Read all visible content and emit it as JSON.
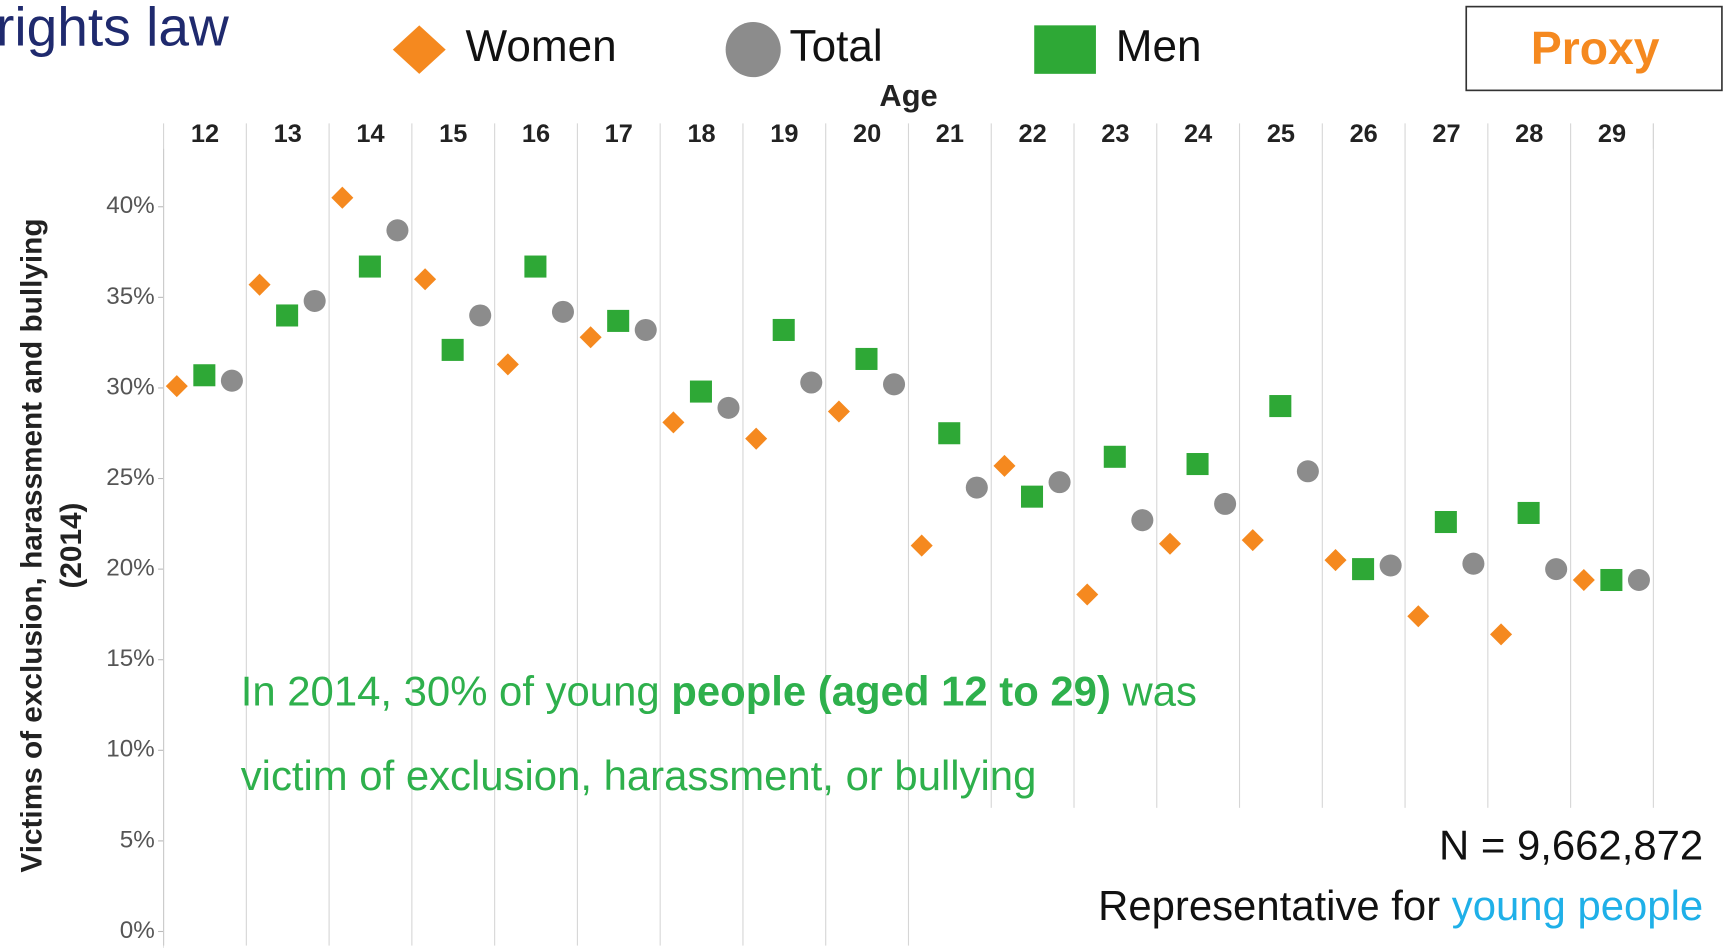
{
  "chart_data": {
    "type": "scatter",
    "title": "rights law",
    "badge": "Proxy",
    "xlabel": "Age",
    "ylabel": [
      "Victims of exclusion, harassment and bullying",
      "(2014)"
    ],
    "categories": [
      "12",
      "13",
      "14",
      "15",
      "16",
      "17",
      "18",
      "19",
      "20",
      "21",
      "22",
      "23",
      "24",
      "25",
      "26",
      "27",
      "28",
      "29"
    ],
    "series": [
      {
        "name": "Women",
        "color": "#f5891f",
        "marker": "diamond",
        "values": [
          30.1,
          35.7,
          40.5,
          36.0,
          31.3,
          32.8,
          28.1,
          27.2,
          28.7,
          21.3,
          25.7,
          18.6,
          21.4,
          21.6,
          20.5,
          17.4,
          16.4,
          19.4
        ]
      },
      {
        "name": "Total",
        "color": "#8c8c8c",
        "marker": "circle",
        "values": [
          30.4,
          34.8,
          38.7,
          34.0,
          34.2,
          33.2,
          28.9,
          30.3,
          30.2,
          24.5,
          24.8,
          22.7,
          23.6,
          25.4,
          20.2,
          20.3,
          20.0,
          19.4
        ]
      },
      {
        "name": "Men",
        "color": "#2ea836",
        "marker": "square",
        "values": [
          30.7,
          34.0,
          36.7,
          32.1,
          36.7,
          33.7,
          29.8,
          33.2,
          31.6,
          27.5,
          24.0,
          26.2,
          25.8,
          29.0,
          20.0,
          22.6,
          23.1,
          19.4
        ]
      }
    ],
    "ylim": [
      -0.9,
      43.2
    ],
    "yticks": [
      {
        "value": 0,
        "label": "0%"
      },
      {
        "value": 5,
        "label": "5%"
      },
      {
        "value": 10,
        "label": "10%"
      },
      {
        "value": 15,
        "label": "15%"
      },
      {
        "value": 20,
        "label": "20%"
      },
      {
        "value": 25,
        "label": "25%"
      },
      {
        "value": 30,
        "label": "30%"
      },
      {
        "value": 35,
        "label": "35%"
      },
      {
        "value": 40,
        "label": "40%"
      }
    ],
    "annotation": [
      [
        "In 2014, 30% of young ",
        "people (aged 12 to 29)",
        " was"
      ],
      [
        "victim of exclusion, harassment, or bullying"
      ]
    ],
    "sample": "N = 9,662,872",
    "representative": [
      "Representative for ",
      "young people"
    ]
  }
}
